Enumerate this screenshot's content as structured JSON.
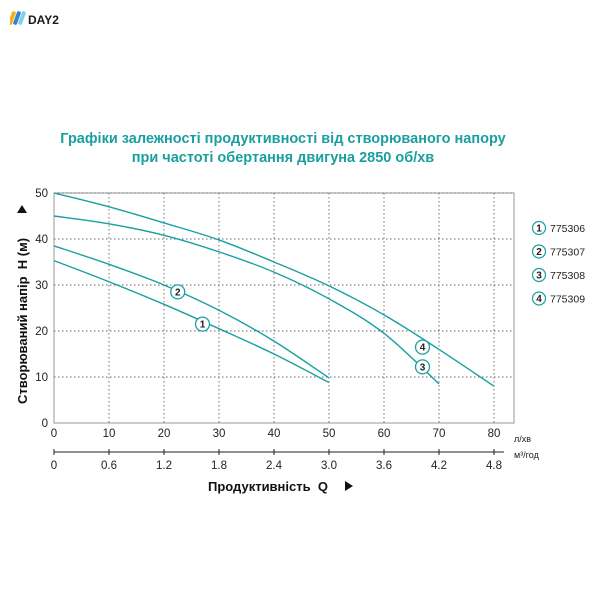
{
  "brand": {
    "name": "DAY2"
  },
  "colors": {
    "curve": "#1a9fa0",
    "title": "#1a9fa0",
    "grid": "#666666",
    "frame": "#999999",
    "logo_bars": [
      "#f2b21c",
      "#3a7fd0",
      "#7fd0e8"
    ]
  },
  "chart_data": {
    "type": "line",
    "title_lines": [
      "Графіки залежності продуктивності від створюваного напору",
      "при частоті обертання двигуна 2850 об/хв"
    ],
    "xlabel": "Продуктивність  Q",
    "ylabel": "Створюваний напір  H (м)",
    "x_unit": "л/хв",
    "x2_unit": "м³/год",
    "xlim": [
      0,
      80
    ],
    "ylim": [
      0,
      50
    ],
    "x_ticks": [
      0,
      10,
      20,
      30,
      40,
      50,
      60,
      70,
      80
    ],
    "x2_ticks": [
      "0",
      "0.6",
      "1.2",
      "1.8",
      "2.4",
      "3.0",
      "3.6",
      "4.2",
      "4.8"
    ],
    "y_ticks": [
      0,
      10,
      20,
      30,
      40,
      50
    ],
    "grid": "dashed",
    "series": [
      {
        "name": "775306",
        "marker": "1",
        "label_at": [
          27,
          21.5
        ],
        "points": [
          [
            0,
            35.3
          ],
          [
            10,
            30.7
          ],
          [
            20,
            25.8
          ],
          [
            30,
            20.5
          ],
          [
            40,
            15.0
          ],
          [
            50,
            8.8
          ]
        ]
      },
      {
        "name": "775307",
        "marker": "2",
        "label_at": [
          22.5,
          28.5
        ],
        "points": [
          [
            0,
            38.5
          ],
          [
            10,
            34.5
          ],
          [
            20,
            30.0
          ],
          [
            30,
            24.5
          ],
          [
            40,
            17.8
          ],
          [
            50,
            9.8
          ]
        ]
      },
      {
        "name": "775308",
        "marker": "3",
        "label_at": [
          67,
          12.2
        ],
        "points": [
          [
            0,
            45.0
          ],
          [
            10,
            43.3
          ],
          [
            20,
            40.8
          ],
          [
            30,
            37.2
          ],
          [
            40,
            32.8
          ],
          [
            50,
            27.0
          ],
          [
            60,
            19.5
          ],
          [
            70,
            8.5
          ]
        ]
      },
      {
        "name": "775309",
        "marker": "4",
        "label_at": [
          67,
          16.5
        ],
        "points": [
          [
            0,
            50.0
          ],
          [
            10,
            47.0
          ],
          [
            20,
            43.5
          ],
          [
            30,
            39.8
          ],
          [
            40,
            35.0
          ],
          [
            50,
            29.8
          ],
          [
            60,
            23.5
          ],
          [
            70,
            16.0
          ],
          [
            80,
            8.0
          ]
        ]
      }
    ]
  }
}
